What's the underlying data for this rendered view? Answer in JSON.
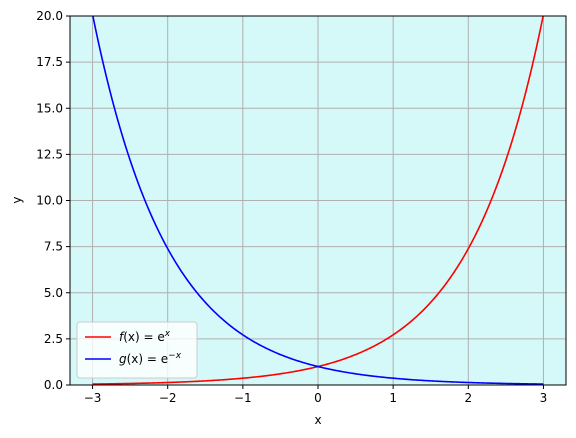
{
  "chart_data": {
    "type": "line",
    "xlabel": "x",
    "ylabel": "y",
    "xlim": [
      -3.3,
      3.3
    ],
    "ylim": [
      0,
      20
    ],
    "grid": true,
    "legend_position": "lower-left",
    "background_color": "#d5f8f8",
    "x_ticks": [
      {
        "value": -3,
        "label": "−3"
      },
      {
        "value": -2,
        "label": "−2"
      },
      {
        "value": -1,
        "label": "−1"
      },
      {
        "value": 0,
        "label": "0"
      },
      {
        "value": 1,
        "label": "1"
      },
      {
        "value": 2,
        "label": "2"
      },
      {
        "value": 3,
        "label": "3"
      }
    ],
    "y_ticks": [
      {
        "value": 0,
        "label": "0.0"
      },
      {
        "value": 2.5,
        "label": "2.5"
      },
      {
        "value": 5,
        "label": "5.0"
      },
      {
        "value": 7.5,
        "label": "7.5"
      },
      {
        "value": 10,
        "label": "10.0"
      },
      {
        "value": 12.5,
        "label": "12.5"
      },
      {
        "value": 15,
        "label": "15.0"
      },
      {
        "value": 17.5,
        "label": "17.5"
      },
      {
        "value": 20,
        "label": "20.0"
      }
    ],
    "x": [
      -3,
      -2.5,
      -2,
      -1.5,
      -1,
      -0.5,
      0,
      0.5,
      1,
      1.5,
      2,
      2.5,
      3
    ],
    "series": [
      {
        "name": "f(x) = e^x",
        "legend_parts": {
          "pre": "f",
          "mid": "(x) = e",
          "sup": "x",
          "suffix": ""
        },
        "color": "#ff0000",
        "values": [
          0.0498,
          0.0821,
          0.1353,
          0.2231,
          0.3679,
          0.6065,
          1.0,
          1.6487,
          2.7183,
          4.4817,
          7.3891,
          12.1825,
          20.0855
        ]
      },
      {
        "name": "g(x) = e^−x",
        "legend_parts": {
          "pre": "g",
          "mid": "(x) = e",
          "sup": "−x",
          "suffix": ""
        },
        "color": "#0000ff",
        "values": [
          20.0855,
          12.1825,
          7.3891,
          4.4817,
          2.7183,
          1.6487,
          1.0,
          0.6065,
          0.3679,
          0.2231,
          0.1353,
          0.0821,
          0.0498
        ]
      }
    ]
  }
}
